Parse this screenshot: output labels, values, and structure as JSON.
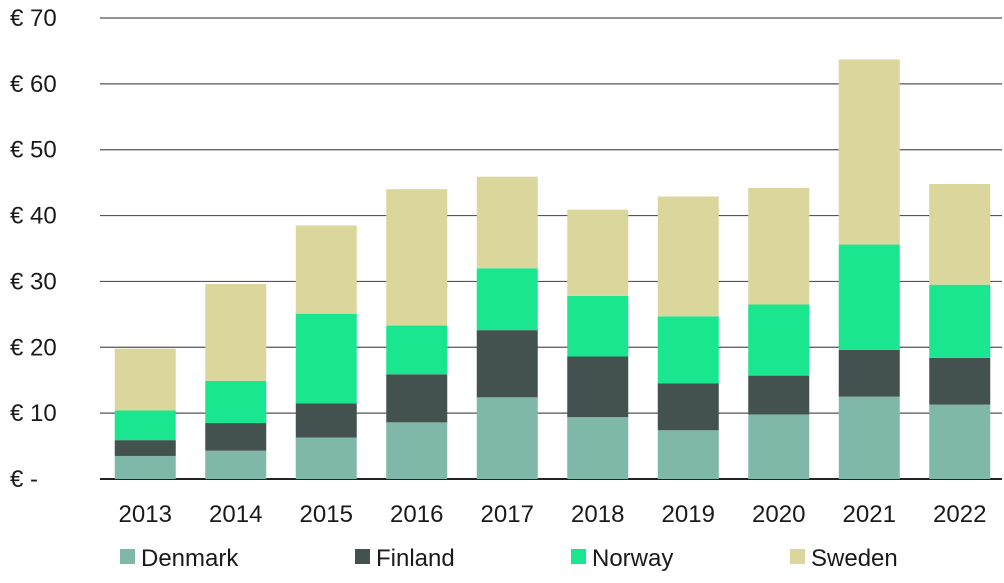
{
  "chart_data": {
    "type": "bar",
    "stacked": true,
    "categories": [
      "2013",
      "2014",
      "2015",
      "2016",
      "2017",
      "2018",
      "2019",
      "2020",
      "2021",
      "2022"
    ],
    "series": [
      {
        "name": "Denmark",
        "color": "#7FB8A8",
        "values": [
          3.5,
          4.3,
          6.3,
          8.6,
          12.4,
          9.4,
          7.4,
          9.8,
          12.5,
          11.3
        ]
      },
      {
        "name": "Finland",
        "color": "#44524F",
        "values": [
          2.4,
          4.2,
          5.2,
          7.3,
          10.2,
          9.2,
          7.1,
          5.9,
          7.1,
          7.1
        ]
      },
      {
        "name": "Norway",
        "color": "#1AE690",
        "values": [
          4.5,
          6.4,
          13.6,
          7.4,
          9.4,
          9.2,
          10.2,
          10.8,
          16.0,
          11.1
        ]
      },
      {
        "name": "Sweden",
        "color": "#DBD69C",
        "values": [
          9.4,
          14.7,
          13.4,
          20.7,
          13.9,
          13.1,
          18.2,
          17.7,
          28.1,
          15.3
        ]
      }
    ],
    "yticks": [
      {
        "value": 70,
        "label": "€ 70"
      },
      {
        "value": 60,
        "label": "€ 60"
      },
      {
        "value": 50,
        "label": "€ 50"
      },
      {
        "value": 40,
        "label": "€ 40"
      },
      {
        "value": 30,
        "label": "€ 30"
      },
      {
        "value": 20,
        "label": "€ 20"
      },
      {
        "value": 10,
        "label": "€ 10"
      },
      {
        "value": 0,
        "label": "€ -"
      }
    ],
    "ylim": [
      0,
      70
    ],
    "grid": true,
    "legend_position": "bottom",
    "title": "",
    "xlabel": "",
    "ylabel": ""
  }
}
